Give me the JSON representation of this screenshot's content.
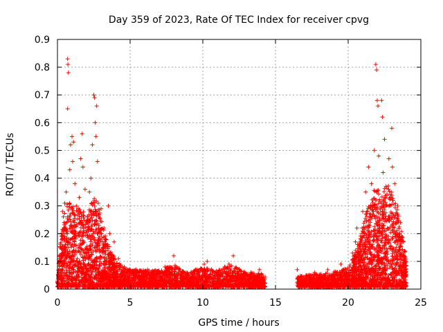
{
  "chart_data": {
    "type": "scatter",
    "title": "Day 359 of 2023, Rate Of TEC Index for receiver cpvg",
    "xlabel": "GPS time / hours",
    "ylabel": "ROTI / TECUs",
    "xlim": [
      0,
      25
    ],
    "ylim": [
      0,
      0.9
    ],
    "xticks": [
      0,
      5,
      10,
      15,
      20,
      25
    ],
    "yticks": [
      0,
      0.1,
      0.2,
      0.3,
      0.4,
      0.5,
      0.6,
      0.7,
      0.8,
      0.9
    ],
    "xtick_labels": [
      "0",
      "5",
      "10",
      "15",
      "20",
      "25"
    ],
    "ytick_labels": [
      "0",
      "0.1",
      "0.2",
      "0.3",
      "0.4",
      "0.5",
      "0.6",
      "0.7",
      "0.8",
      "0.9"
    ],
    "grid": true,
    "marker": "plus",
    "marker_color": "#ff0000",
    "series": [
      {
        "points": [
          [
            0.05,
            0.02
          ],
          [
            0.1,
            0.06
          ],
          [
            0.15,
            0.11
          ],
          [
            0.2,
            0.15
          ],
          [
            0.25,
            0.2
          ],
          [
            0.3,
            0.04
          ],
          [
            0.35,
            0.28
          ],
          [
            0.4,
            0.09
          ],
          [
            0.45,
            0.24
          ],
          [
            0.5,
            0.31
          ],
          [
            0.55,
            0.16
          ],
          [
            0.6,
            0.35
          ],
          [
            0.65,
            0.12
          ],
          [
            0.7,
            0.83
          ],
          [
            0.72,
            0.81
          ],
          [
            0.75,
            0.78
          ],
          [
            0.7,
            0.65
          ],
          [
            0.8,
            0.26
          ],
          [
            0.85,
            0.43
          ],
          [
            0.9,
            0.52
          ],
          [
            0.95,
            0.18
          ],
          [
            1.0,
            0.55
          ],
          [
            1.05,
            0.46
          ],
          [
            1.1,
            0.53
          ],
          [
            1.15,
            0.22
          ],
          [
            1.2,
            0.38
          ],
          [
            1.25,
            0.14
          ],
          [
            1.3,
            0.3
          ],
          [
            1.35,
            0.1
          ],
          [
            1.4,
            0.27
          ],
          [
            1.5,
            0.33
          ],
          [
            1.6,
            0.47
          ],
          [
            1.7,
            0.56
          ],
          [
            1.75,
            0.44
          ],
          [
            1.8,
            0.21
          ],
          [
            1.9,
            0.36
          ],
          [
            2.0,
            0.13
          ],
          [
            2.1,
            0.25
          ],
          [
            2.2,
            0.35
          ],
          [
            2.3,
            0.4
          ],
          [
            2.4,
            0.52
          ],
          [
            2.5,
            0.7
          ],
          [
            2.55,
            0.69
          ],
          [
            2.6,
            0.6
          ],
          [
            2.65,
            0.55
          ],
          [
            2.7,
            0.66
          ],
          [
            2.75,
            0.46
          ],
          [
            2.8,
            0.31
          ],
          [
            2.85,
            0.26
          ],
          [
            2.9,
            0.19
          ],
          [
            3.0,
            0.29
          ],
          [
            3.1,
            0.14
          ],
          [
            3.2,
            0.22
          ],
          [
            3.3,
            0.1
          ],
          [
            3.4,
            0.16
          ],
          [
            3.5,
            0.3
          ],
          [
            3.6,
            0.2
          ],
          [
            3.7,
            0.12
          ],
          [
            3.8,
            0.08
          ],
          [
            3.9,
            0.17
          ],
          [
            4.0,
            0.06
          ],
          [
            4.2,
            0.11
          ],
          [
            4.4,
            0.05
          ],
          [
            4.6,
            0.08
          ],
          [
            4.8,
            0.04
          ],
          [
            5.0,
            0.07
          ],
          [
            5.3,
            0.03
          ],
          [
            5.6,
            0.06
          ],
          [
            5.9,
            0.04
          ],
          [
            6.2,
            0.07
          ],
          [
            6.5,
            0.03
          ],
          [
            6.8,
            0.05
          ],
          [
            7.1,
            0.04
          ],
          [
            7.4,
            0.08
          ],
          [
            7.7,
            0.03
          ],
          [
            8.0,
            0.12
          ],
          [
            8.3,
            0.05
          ],
          [
            8.6,
            0.03
          ],
          [
            8.9,
            0.06
          ],
          [
            9.2,
            0.04
          ],
          [
            9.5,
            0.07
          ],
          [
            9.8,
            0.05
          ],
          [
            10.1,
            0.09
          ],
          [
            10.3,
            0.1
          ],
          [
            10.6,
            0.04
          ],
          [
            10.9,
            0.06
          ],
          [
            11.2,
            0.05
          ],
          [
            11.5,
            0.08
          ],
          [
            11.8,
            0.09
          ],
          [
            12.1,
            0.12
          ],
          [
            12.4,
            0.04
          ],
          [
            12.7,
            0.05
          ],
          [
            13.0,
            0.03
          ],
          [
            13.3,
            0.06
          ],
          [
            13.6,
            0.04
          ],
          [
            13.9,
            0.07
          ],
          [
            14.2,
            0.03
          ],
          [
            16.5,
            0.07
          ],
          [
            16.8,
            0.03
          ],
          [
            17.1,
            0.05
          ],
          [
            17.4,
            0.04
          ],
          [
            17.7,
            0.06
          ],
          [
            18.0,
            0.03
          ],
          [
            18.3,
            0.05
          ],
          [
            18.6,
            0.07
          ],
          [
            18.9,
            0.04
          ],
          [
            19.2,
            0.06
          ],
          [
            19.5,
            0.09
          ],
          [
            19.8,
            0.05
          ],
          [
            20.1,
            0.08
          ],
          [
            20.3,
            0.13
          ],
          [
            20.5,
            0.17
          ],
          [
            20.6,
            0.22
          ],
          [
            20.8,
            0.12
          ],
          [
            21.0,
            0.28
          ],
          [
            21.1,
            0.2
          ],
          [
            21.2,
            0.35
          ],
          [
            21.3,
            0.16
          ],
          [
            21.4,
            0.44
          ],
          [
            21.5,
            0.25
          ],
          [
            21.6,
            0.38
          ],
          [
            21.7,
            0.3
          ],
          [
            21.8,
            0.5
          ],
          [
            21.85,
            0.2
          ],
          [
            21.9,
            0.81
          ],
          [
            21.95,
            0.79
          ],
          [
            22.0,
            0.68
          ],
          [
            22.05,
            0.66
          ],
          [
            22.1,
            0.48
          ],
          [
            22.2,
            0.15
          ],
          [
            22.3,
            0.68
          ],
          [
            22.35,
            0.62
          ],
          [
            22.4,
            0.42
          ],
          [
            22.5,
            0.54
          ],
          [
            22.6,
            0.37
          ],
          [
            22.7,
            0.22
          ],
          [
            22.8,
            0.47
          ],
          [
            22.9,
            0.33
          ],
          [
            23.0,
            0.58
          ],
          [
            23.05,
            0.44
          ],
          [
            23.1,
            0.27
          ],
          [
            23.2,
            0.38
          ],
          [
            23.3,
            0.15
          ],
          [
            23.4,
            0.3
          ],
          [
            23.5,
            0.2
          ],
          [
            23.6,
            0.24
          ],
          [
            23.7,
            0.12
          ],
          [
            23.8,
            0.17
          ],
          [
            23.9,
            0.08
          ],
          [
            23.95,
            0.1
          ]
        ]
      }
    ],
    "density": {
      "segments": [
        {
          "x0": 0.0,
          "x1": 4.0,
          "n": 1300
        },
        {
          "x0": 4.0,
          "x1": 14.3,
          "n": 1900
        },
        {
          "x0": 16.5,
          "x1": 20.3,
          "n": 700
        },
        {
          "x0": 20.3,
          "x1": 24.0,
          "n": 1300
        }
      ],
      "envelope": [
        [
          0.0,
          0.06
        ],
        [
          0.4,
          0.26
        ],
        [
          0.8,
          0.32
        ],
        [
          1.2,
          0.28
        ],
        [
          1.6,
          0.3
        ],
        [
          2.0,
          0.24
        ],
        [
          2.4,
          0.33
        ],
        [
          2.8,
          0.3
        ],
        [
          3.2,
          0.2
        ],
        [
          3.6,
          0.14
        ],
        [
          4.0,
          0.1
        ],
        [
          4.5,
          0.07
        ],
        [
          5.0,
          0.065
        ],
        [
          6.0,
          0.06
        ],
        [
          7.0,
          0.06
        ],
        [
          8.0,
          0.08
        ],
        [
          9.0,
          0.05
        ],
        [
          10.0,
          0.07
        ],
        [
          11.0,
          0.06
        ],
        [
          12.0,
          0.08
        ],
        [
          13.0,
          0.05
        ],
        [
          14.0,
          0.05
        ],
        [
          14.3,
          0.04
        ],
        [
          16.5,
          0.04
        ],
        [
          17.5,
          0.045
        ],
        [
          18.5,
          0.05
        ],
        [
          19.5,
          0.06
        ],
        [
          20.0,
          0.07
        ],
        [
          20.3,
          0.1
        ],
        [
          20.8,
          0.18
        ],
        [
          21.3,
          0.28
        ],
        [
          21.8,
          0.36
        ],
        [
          22.3,
          0.34
        ],
        [
          22.8,
          0.38
        ],
        [
          23.3,
          0.3
        ],
        [
          23.7,
          0.2
        ],
        [
          24.0,
          0.1
        ]
      ]
    }
  }
}
